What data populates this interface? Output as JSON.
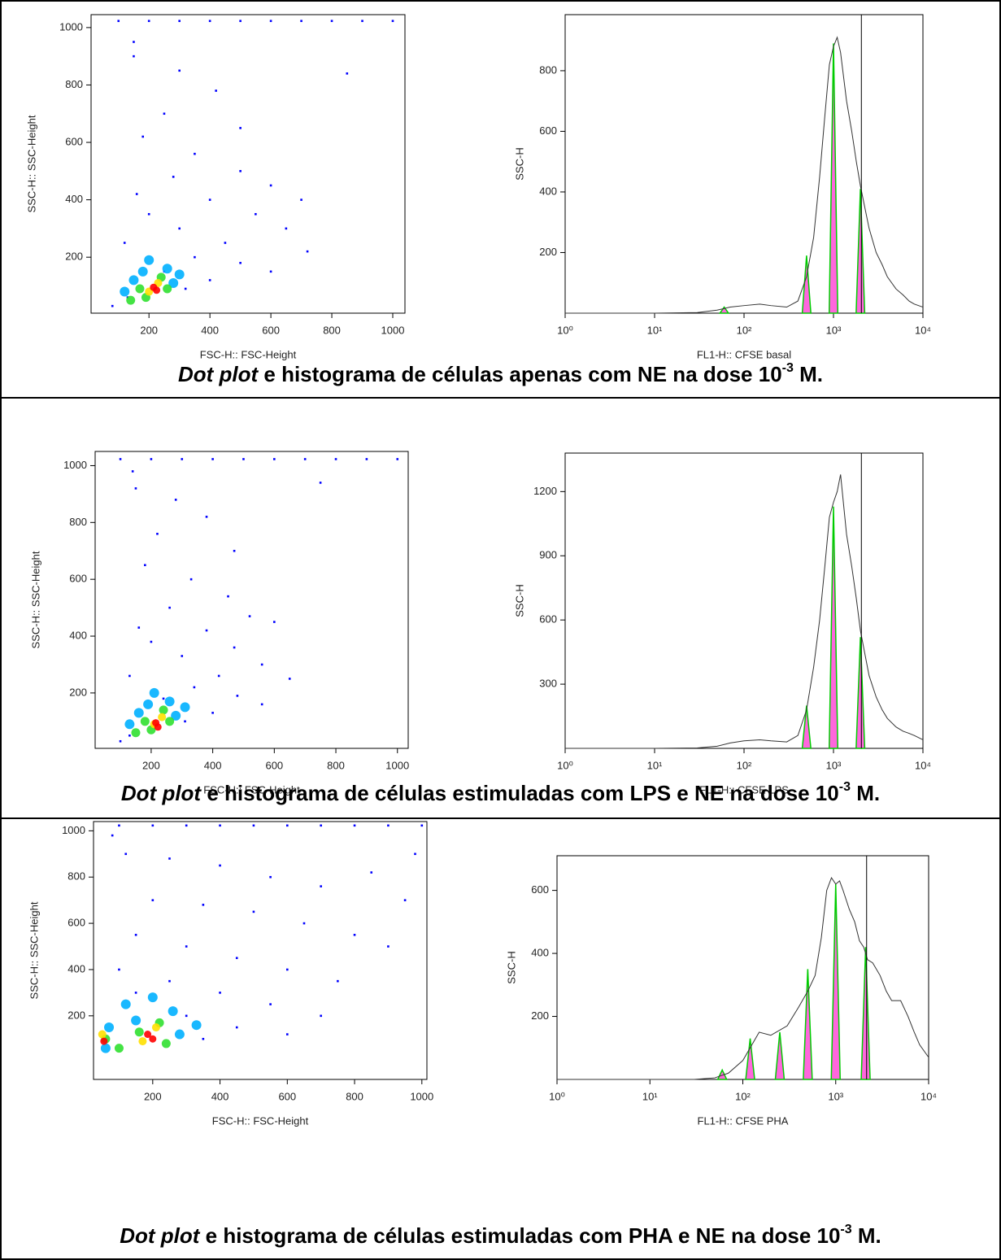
{
  "chart_data": [
    {
      "type": "scatter",
      "xlabel": "FSC-H:: FSC-Height",
      "ylabel": "SSC-H:: SSC-Height",
      "xlim": [
        10,
        1040
      ],
      "ylim": [
        5,
        1045
      ],
      "xticks": [
        200,
        400,
        600,
        800,
        1000
      ],
      "yticks": [
        200,
        400,
        600,
        800,
        1000
      ],
      "series": [
        {
          "color": "#0000ff",
          "x": [
            150,
            300,
            420,
            250,
            180,
            350,
            500,
            600,
            280,
            160,
            400,
            550,
            650,
            720,
            300,
            200,
            450,
            350,
            500,
            600,
            120,
            250,
            400,
            150,
            500,
            700,
            850,
            130,
            80,
            320,
            200,
            400,
            600,
            800,
            1000,
            100,
            300,
            500,
            700,
            900
          ],
          "values": [
            900,
            850,
            780,
            700,
            620,
            560,
            500,
            450,
            480,
            420,
            400,
            350,
            300,
            220,
            300,
            350,
            250,
            200,
            180,
            150,
            250,
            150,
            120,
            950,
            650,
            400,
            840,
            60,
            30,
            90,
            1023,
            1023,
            1023,
            1023,
            1023,
            1023,
            1023,
            1023,
            1023,
            1023
          ]
        },
        {
          "color": "#00b0ff",
          "x": [
            150,
            180,
            260,
            120,
            280,
            200,
            300
          ],
          "values": [
            120,
            150,
            160,
            80,
            110,
            190,
            140
          ]
        },
        {
          "color": "#30e030",
          "x": [
            170,
            240,
            190,
            260,
            140
          ],
          "values": [
            90,
            130,
            60,
            90,
            50
          ]
        },
        {
          "color": "#ffe000",
          "x": [
            200,
            230
          ],
          "values": [
            80,
            110
          ]
        },
        {
          "color": "#ff0000",
          "x": [
            215,
            225
          ],
          "values": [
            95,
            85
          ]
        }
      ]
    },
    {
      "type": "histogram",
      "xlabel": "FL1-H:: CFSE basal",
      "ylabel": "SSC-H",
      "log_x": true,
      "xlim": [
        1,
        10000
      ],
      "ylim": [
        0,
        985
      ],
      "xticks": [
        {
          "value": 1,
          "label": "10⁰"
        },
        {
          "value": 10,
          "label": "10¹"
        },
        {
          "value": 100,
          "label": "10²"
        },
        {
          "value": 1000,
          "label": "10³"
        },
        {
          "value": 10000,
          "label": "10⁴"
        }
      ],
      "yticks": [
        200,
        400,
        600,
        800
      ],
      "x": [
        1,
        10,
        30,
        50,
        70,
        100,
        150,
        200,
        300,
        400,
        500,
        600,
        700,
        800,
        900,
        1000,
        1100,
        1200,
        1400,
        1600,
        1800,
        2000,
        2200,
        2500,
        3000,
        3500,
        4000,
        5000,
        6000,
        7000,
        8000,
        10000
      ],
      "values": [
        0,
        0,
        2,
        10,
        20,
        25,
        30,
        25,
        20,
        40,
        120,
        250,
        450,
        650,
        820,
        880,
        910,
        860,
        700,
        600,
        500,
        420,
        360,
        280,
        200,
        160,
        120,
        80,
        60,
        40,
        30,
        20
      ],
      "color": "#333333",
      "peaks": {
        "fill": "#ff66dd",
        "outline": "#00cc00",
        "x": [
          60,
          500,
          1000,
          2000
        ],
        "values": [
          20,
          190,
          890,
          410
        ]
      },
      "marker_x": 2050
    },
    {
      "type": "scatter",
      "xlabel": "FSC-H:: FSC-Height",
      "ylabel": "SSC-H:: SSC-Height",
      "xlim": [
        18,
        1035
      ],
      "ylim": [
        5,
        1050
      ],
      "xticks": [
        200,
        400,
        600,
        800,
        1000
      ],
      "yticks": [
        200,
        400,
        600,
        800,
        1000
      ],
      "series": [
        {
          "color": "#0000ff",
          "x": [
            150,
            280,
            380,
            220,
            180,
            330,
            450,
            520,
            260,
            160,
            380,
            470,
            560,
            650,
            300,
            200,
            420,
            340,
            480,
            560,
            130,
            240,
            400,
            140,
            470,
            600,
            750,
            130,
            100,
            310,
            200,
            400,
            600,
            800,
            1000,
            100,
            300,
            500,
            700,
            900
          ],
          "values": [
            920,
            880,
            820,
            760,
            650,
            600,
            540,
            470,
            500,
            430,
            420,
            360,
            300,
            250,
            330,
            380,
            260,
            220,
            190,
            160,
            260,
            180,
            130,
            980,
            700,
            450,
            940,
            50,
            30,
            100,
            1023,
            1023,
            1023,
            1023,
            1023,
            1023,
            1023,
            1023,
            1023,
            1023
          ]
        },
        {
          "color": "#00b0ff",
          "x": [
            160,
            190,
            260,
            130,
            280,
            210,
            310
          ],
          "values": [
            130,
            160,
            170,
            90,
            120,
            200,
            150
          ]
        },
        {
          "color": "#30e030",
          "x": [
            180,
            240,
            200,
            260,
            150
          ],
          "values": [
            100,
            140,
            70,
            100,
            60
          ]
        },
        {
          "color": "#ffe000",
          "x": [
            210,
            235
          ],
          "values": [
            90,
            115
          ]
        },
        {
          "color": "#ff0000",
          "x": [
            215,
            222
          ],
          "values": [
            95,
            80
          ]
        }
      ]
    },
    {
      "type": "histogram",
      "xlabel": "FL1-H:: CFSE LPS",
      "ylabel": "SSC-H",
      "log_x": true,
      "xlim": [
        1,
        10000
      ],
      "ylim": [
        0,
        1380
      ],
      "xticks": [
        {
          "value": 1,
          "label": "10⁰"
        },
        {
          "value": 10,
          "label": "10¹"
        },
        {
          "value": 100,
          "label": "10²"
        },
        {
          "value": 1000,
          "label": "10³"
        },
        {
          "value": 10000,
          "label": "10⁴"
        }
      ],
      "yticks": [
        300,
        600,
        900,
        1200
      ],
      "x": [
        1,
        10,
        30,
        50,
        70,
        100,
        150,
        200,
        300,
        400,
        500,
        600,
        700,
        800,
        900,
        1000,
        1100,
        1200,
        1400,
        1600,
        1800,
        2000,
        2200,
        2500,
        3000,
        3500,
        4000,
        5000,
        6000,
        7000,
        8000,
        10000
      ],
      "values": [
        0,
        0,
        2,
        10,
        25,
        35,
        40,
        35,
        30,
        60,
        180,
        380,
        600,
        850,
        1080,
        1150,
        1200,
        1280,
        1000,
        850,
        700,
        550,
        460,
        340,
        240,
        180,
        140,
        100,
        80,
        70,
        60,
        40
      ],
      "color": "#333333",
      "peaks": {
        "fill": "#ff66dd",
        "outline": "#00cc00",
        "x": [
          500,
          1000,
          2000
        ],
        "values": [
          200,
          1130,
          520
        ]
      },
      "marker_x": 2050
    },
    {
      "type": "scatter",
      "xlabel": "FSC-H:: FSC-Height",
      "ylabel": "SSC-H:: SSC-Height",
      "xlim": [
        24,
        1015
      ],
      "ylim": [
        -75,
        1040
      ],
      "xticks": [
        200,
        400,
        600,
        800,
        1000
      ],
      "yticks": [
        200,
        400,
        600,
        800,
        1000
      ],
      "series": [
        {
          "color": "#0000ff",
          "x": [
            120,
            250,
            400,
            550,
            700,
            850,
            980,
            200,
            350,
            500,
            650,
            800,
            900,
            150,
            300,
            450,
            600,
            750,
            250,
            400,
            550,
            700,
            150,
            300,
            450,
            600,
            100,
            350,
            80,
            950,
            200,
            400,
            600,
            800,
            1000,
            100,
            300,
            500,
            700,
            900
          ],
          "values": [
            900,
            880,
            850,
            800,
            760,
            820,
            900,
            700,
            680,
            650,
            600,
            550,
            500,
            550,
            500,
            450,
            400,
            350,
            350,
            300,
            250,
            200,
            300,
            200,
            150,
            120,
            400,
            100,
            980,
            700,
            1023,
            1023,
            1023,
            1023,
            1023,
            1023,
            1023,
            1023,
            1023,
            1023
          ]
        },
        {
          "color": "#00b0ff",
          "x": [
            70,
            150,
            260,
            60,
            280,
            200,
            120,
            330
          ],
          "values": [
            150,
            180,
            220,
            60,
            120,
            280,
            250,
            160
          ]
        },
        {
          "color": "#30e030",
          "x": [
            60,
            160,
            220,
            240,
            100
          ],
          "values": [
            100,
            130,
            170,
            80,
            60
          ]
        },
        {
          "color": "#ffe000",
          "x": [
            50,
            170,
            210
          ],
          "values": [
            120,
            90,
            150
          ]
        },
        {
          "color": "#ff0000",
          "x": [
            185,
            200,
            55
          ],
          "values": [
            120,
            100,
            90
          ]
        }
      ]
    },
    {
      "type": "histogram",
      "xlabel": "FL1-H:: CFSE PHA",
      "ylabel": "SSC-H",
      "log_x": true,
      "xlim": [
        1,
        10000
      ],
      "ylim": [
        0,
        710
      ],
      "xticks": [
        {
          "value": 1,
          "label": "10⁰"
        },
        {
          "value": 10,
          "label": "10¹"
        },
        {
          "value": 100,
          "label": "10²"
        },
        {
          "value": 1000,
          "label": "10³"
        },
        {
          "value": 10000,
          "label": "10⁴"
        }
      ],
      "yticks": [
        200,
        400,
        600
      ],
      "x": [
        1,
        10,
        30,
        50,
        70,
        100,
        150,
        200,
        300,
        400,
        500,
        600,
        700,
        800,
        900,
        1000,
        1100,
        1200,
        1400,
        1600,
        1800,
        2000,
        2200,
        2500,
        3000,
        3500,
        4000,
        5000,
        6000,
        7000,
        8000,
        10000
      ],
      "values": [
        0,
        0,
        0,
        5,
        20,
        60,
        150,
        140,
        170,
        230,
        280,
        330,
        450,
        600,
        640,
        620,
        630,
        600,
        540,
        500,
        440,
        420,
        380,
        370,
        330,
        280,
        250,
        250,
        200,
        150,
        110,
        70
      ],
      "color": "#333333",
      "peaks": {
        "fill": "#ff66dd",
        "outline": "#00cc00",
        "x": [
          60,
          120,
          250,
          500,
          1000,
          2100
        ],
        "values": [
          30,
          130,
          150,
          350,
          620,
          420
        ]
      },
      "marker_x": 2150
    }
  ],
  "captions": [
    {
      "emph": "Dot plot",
      "text": " e histograma de células apenas com NE na dose 10",
      "sup": "-3",
      "tail": " M."
    },
    {
      "emph": "Dot plot",
      "text": " e histograma de células estimuladas com LPS e NE na dose 10",
      "sup": "-3",
      "tail": " M."
    },
    {
      "emph": "Dot plot",
      "text": " e histograma de células estimuladas com PHA e NE na dose 10",
      "sup": "-3",
      "tail": " M."
    }
  ]
}
